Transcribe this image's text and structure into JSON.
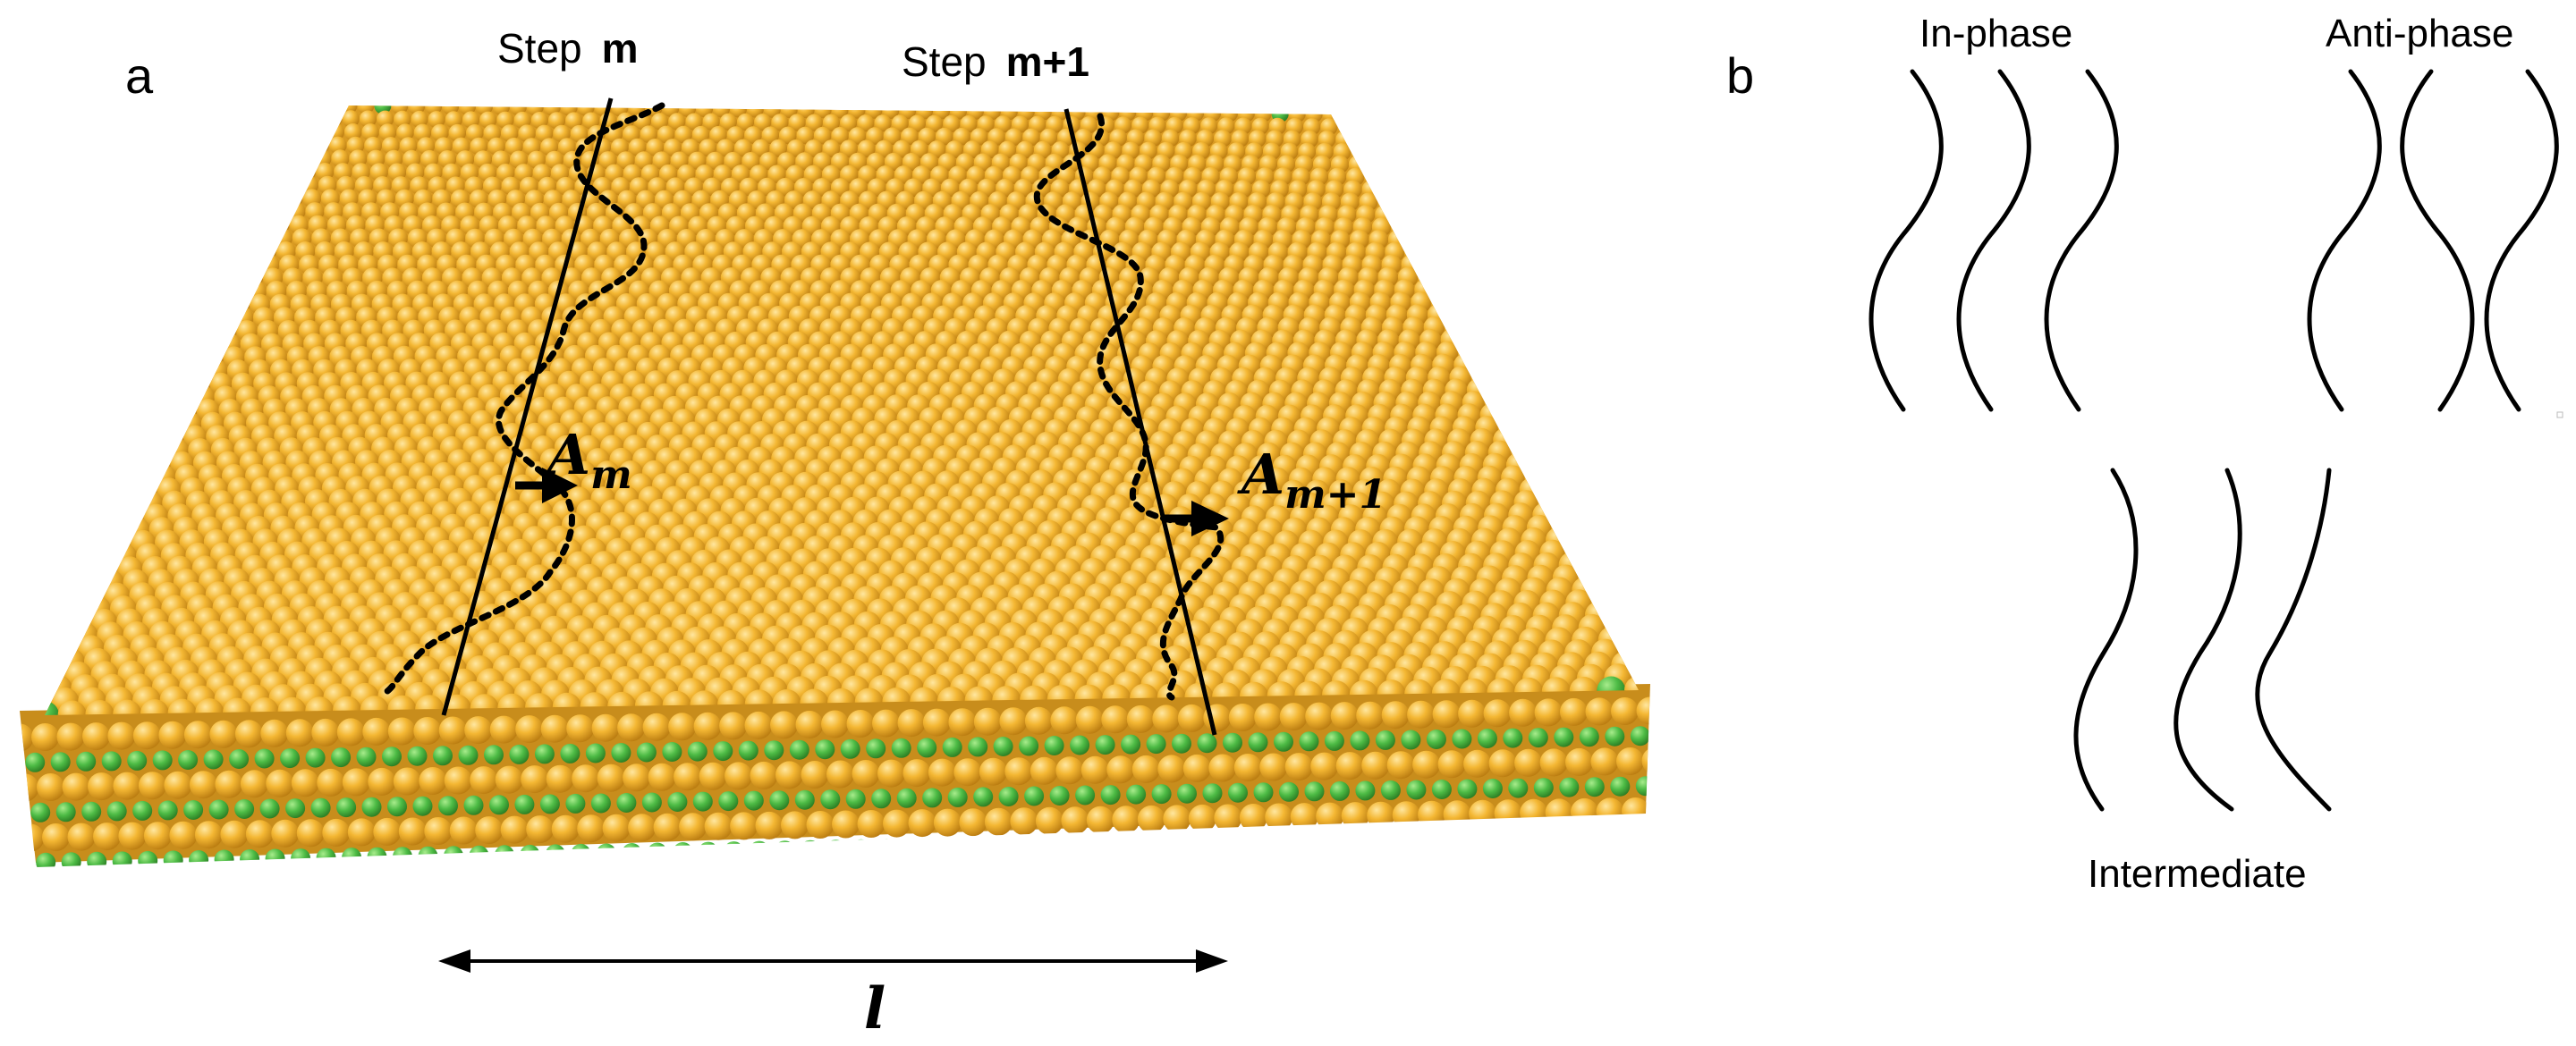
{
  "panel_a": {
    "label": "a",
    "step_m": {
      "prefix": "Step",
      "index": "m"
    },
    "step_m1": {
      "prefix": "Step",
      "index": "m+1"
    },
    "amp_m": {
      "base": "A",
      "sub": "m"
    },
    "amp_m1": {
      "base": "A",
      "sub": "m+1"
    },
    "distance_label": "l"
  },
  "panel_b": {
    "label": "b",
    "in_phase": "In-phase",
    "anti_phase": "Anti-phase",
    "intermediate": "Intermediate"
  },
  "colors": {
    "atom_gold": "#f2b632",
    "atom_gold_dark": "#b67a10",
    "atom_green": "#4db84a",
    "line": "#000000"
  }
}
